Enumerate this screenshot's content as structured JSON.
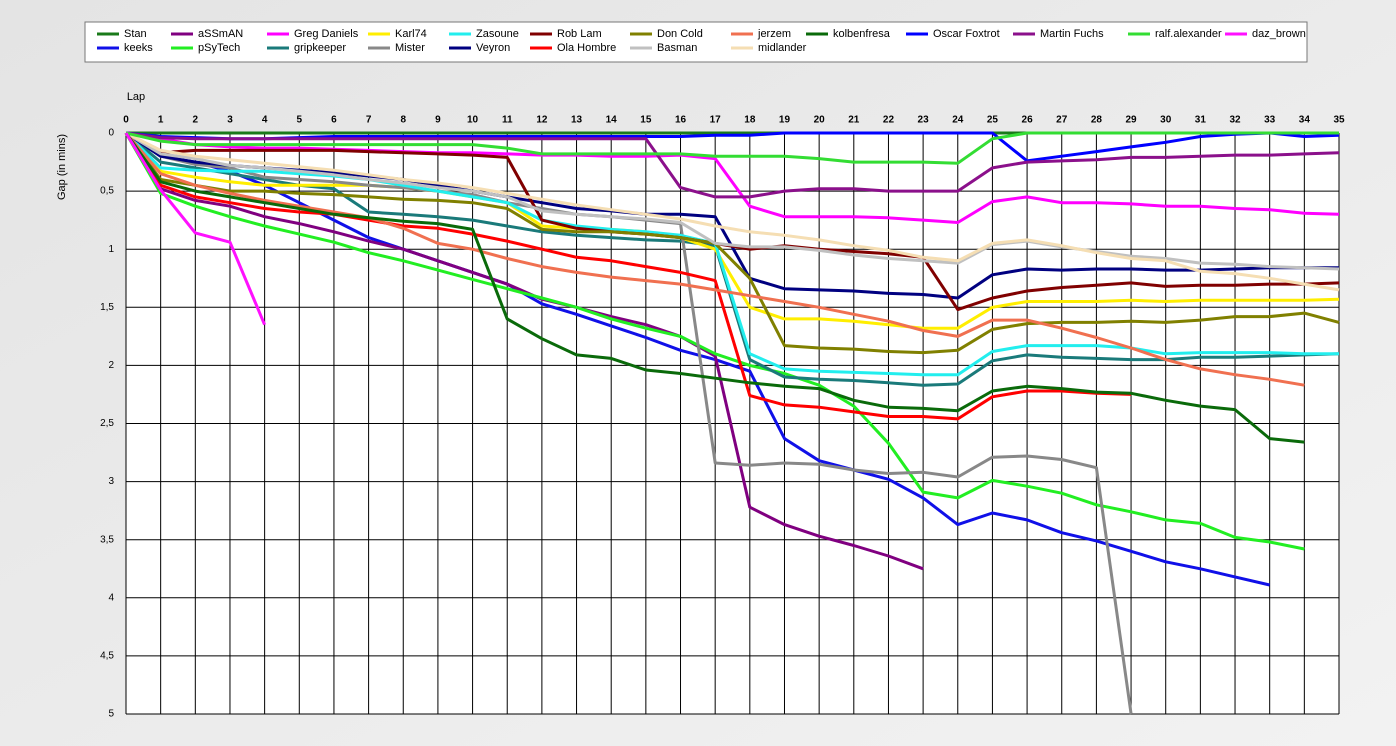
{
  "chart_data": {
    "type": "line",
    "x_label": "Lap",
    "y_label": "Gap (in mins)",
    "x": [
      0,
      1,
      2,
      3,
      4,
      5,
      6,
      7,
      8,
      9,
      10,
      11,
      12,
      13,
      14,
      15,
      16,
      17,
      18,
      19,
      20,
      21,
      22,
      23,
      24,
      25,
      26,
      27,
      28,
      29,
      30,
      31,
      32,
      33,
      34,
      35
    ],
    "xlim": [
      0,
      35
    ],
    "xticks": [
      0,
      1,
      2,
      3,
      4,
      5,
      6,
      7,
      8,
      9,
      10,
      11,
      12,
      13,
      14,
      15,
      16,
      17,
      18,
      19,
      20,
      21,
      22,
      23,
      24,
      25,
      26,
      27,
      28,
      29,
      30,
      31,
      32,
      33,
      34,
      35
    ],
    "ylim": [
      0,
      5
    ],
    "y_inverted": true,
    "yticks": [
      0,
      {
        "value": 0.5,
        "label": "0,5"
      },
      1,
      {
        "value": 1.5,
        "label": "1,5"
      },
      2,
      {
        "value": 2.5,
        "label": "2,5"
      },
      3,
      {
        "value": 3.5,
        "label": "3,5"
      },
      4,
      {
        "value": 4.5,
        "label": "4,5"
      },
      5
    ],
    "grid": true,
    "legend": "top",
    "series": [
      {
        "name": "Stan",
        "color": "#1a7a1a",
        "values": [
          0,
          0,
          0,
          0,
          0,
          0,
          0,
          0,
          0,
          0,
          0,
          0,
          0,
          0,
          0,
          0,
          0,
          0,
          0,
          0,
          0,
          0,
          0,
          0,
          0,
          0,
          0,
          0,
          0,
          0,
          0,
          0,
          0,
          0,
          0,
          0
        ]
      },
      {
        "name": "keeks",
        "color": "#1010e8",
        "values": [
          0,
          0.2,
          0.25,
          0.33,
          0.45,
          0.6,
          0.75,
          0.9,
          1.0,
          1.1,
          1.2,
          1.3,
          1.47,
          1.56,
          1.66,
          1.76,
          1.87,
          1.95,
          2.05,
          2.63,
          2.82,
          2.9,
          2.98,
          3.14,
          3.37,
          3.27,
          3.33,
          3.44,
          3.51,
          3.6,
          3.69,
          3.75,
          3.82,
          3.89,
          null,
          null
        ]
      },
      {
        "name": "aSSmAN",
        "color": "#800080",
        "values": [
          0,
          0.48,
          0.58,
          0.63,
          0.72,
          0.78,
          0.85,
          0.93,
          1.0,
          1.1,
          1.2,
          1.3,
          1.43,
          1.5,
          1.58,
          1.65,
          1.75,
          1.92,
          3.22,
          3.37,
          3.47,
          3.55,
          3.64,
          3.75,
          null,
          null,
          null,
          null,
          null,
          null,
          null,
          null,
          null,
          null,
          null,
          null
        ]
      },
      {
        "name": "pSyTech",
        "color": "#22ee22",
        "values": [
          0,
          0.52,
          0.63,
          0.72,
          0.8,
          0.87,
          0.94,
          1.03,
          1.1,
          1.18,
          1.26,
          1.34,
          1.42,
          1.5,
          1.6,
          1.68,
          1.75,
          1.9,
          2.0,
          2.07,
          2.17,
          2.35,
          2.67,
          3.09,
          3.14,
          2.99,
          3.04,
          3.1,
          3.2,
          3.26,
          3.33,
          3.36,
          3.48,
          3.52,
          3.58,
          null
        ]
      },
      {
        "name": "Greg Daniels",
        "color": "#ff00ff",
        "values": [
          0,
          0.05,
          0.1,
          0.12,
          0.13,
          0.13,
          0.14,
          0.15,
          0.16,
          0.17,
          0.17,
          0.18,
          0.19,
          0.19,
          0.2,
          0.2,
          0.19,
          0.22,
          0.63,
          0.72,
          0.72,
          0.72,
          0.73,
          0.75,
          0.77,
          0.59,
          0.55,
          0.6,
          0.6,
          0.61,
          0.63,
          0.63,
          0.65,
          0.66,
          0.69,
          0.7
        ]
      },
      {
        "name": "gripkeeper",
        "color": "#1a7a7a",
        "values": [
          0,
          0.25,
          0.3,
          0.35,
          0.4,
          0.45,
          0.48,
          0.68,
          0.7,
          0.72,
          0.75,
          0.8,
          0.85,
          0.88,
          0.9,
          0.92,
          0.93,
          0.97,
          1.95,
          2.1,
          2.12,
          2.13,
          2.15,
          2.17,
          2.16,
          1.96,
          1.91,
          1.93,
          1.94,
          1.95,
          1.95,
          1.93,
          1.93,
          1.92,
          1.91,
          1.9
        ]
      },
      {
        "name": "Karl74",
        "color": "#ffee00",
        "values": [
          0,
          0.33,
          0.38,
          0.42,
          0.45,
          0.45,
          0.45,
          0.45,
          0.47,
          0.5,
          0.55,
          0.6,
          0.8,
          0.82,
          0.83,
          0.85,
          0.9,
          1.0,
          1.5,
          1.6,
          1.6,
          1.62,
          1.65,
          1.68,
          1.68,
          1.5,
          1.45,
          1.45,
          1.45,
          1.44,
          1.45,
          1.44,
          1.44,
          1.44,
          1.44,
          1.43
        ]
      },
      {
        "name": "Mister",
        "color": "#888888",
        "values": [
          0,
          0.2,
          0.27,
          0.3,
          0.38,
          0.4,
          0.42,
          0.45,
          0.47,
          0.5,
          0.53,
          0.6,
          0.65,
          0.7,
          0.72,
          0.75,
          0.78,
          2.84,
          2.86,
          2.84,
          2.85,
          2.9,
          2.93,
          2.92,
          2.96,
          2.79,
          2.78,
          2.81,
          2.88,
          5.0,
          null,
          null,
          null,
          null,
          null,
          null
        ]
      },
      {
        "name": "Zasoune",
        "color": "#22eeee",
        "values": [
          0,
          0.3,
          0.32,
          0.33,
          0.33,
          0.35,
          0.37,
          0.4,
          0.45,
          0.5,
          0.55,
          0.6,
          0.75,
          0.8,
          0.83,
          0.85,
          0.88,
          0.95,
          1.9,
          2.03,
          2.05,
          2.06,
          2.07,
          2.08,
          2.08,
          1.88,
          1.83,
          1.83,
          1.83,
          1.85,
          1.9,
          1.89,
          1.89,
          1.89,
          1.9,
          1.9
        ]
      },
      {
        "name": "Veyron",
        "color": "#000080",
        "values": [
          0,
          0.2,
          0.25,
          0.28,
          0.3,
          0.32,
          0.34,
          0.37,
          0.4,
          0.45,
          0.5,
          0.55,
          0.6,
          0.65,
          0.67,
          0.7,
          0.7,
          0.72,
          1.25,
          1.34,
          1.35,
          1.36,
          1.38,
          1.39,
          1.42,
          1.22,
          1.17,
          1.18,
          1.17,
          1.17,
          1.18,
          1.18,
          1.17,
          1.16,
          1.16,
          1.16
        ]
      },
      {
        "name": "Rob Lam",
        "color": "#800000",
        "values": [
          0,
          0.17,
          0.15,
          0.15,
          0.15,
          0.15,
          0.15,
          0.16,
          0.17,
          0.18,
          0.19,
          0.21,
          0.75,
          0.82,
          0.85,
          0.87,
          0.9,
          0.95,
          1.0,
          0.97,
          1.0,
          1.02,
          1.04,
          1.07,
          1.52,
          1.42,
          1.36,
          1.33,
          1.31,
          1.29,
          1.32,
          1.31,
          1.31,
          1.3,
          1.3,
          1.29
        ]
      },
      {
        "name": "Ola Hombre",
        "color": "#ff0000",
        "values": [
          0,
          0.45,
          0.55,
          0.6,
          0.65,
          0.68,
          0.7,
          0.75,
          0.8,
          0.82,
          0.87,
          0.93,
          1.0,
          1.07,
          1.1,
          1.15,
          1.2,
          1.27,
          2.26,
          2.34,
          2.36,
          2.4,
          2.44,
          2.44,
          2.46,
          2.27,
          2.22,
          2.22,
          2.24,
          2.25,
          null,
          null,
          null,
          null,
          null,
          null
        ]
      },
      {
        "name": "Don Cold",
        "color": "#808000",
        "values": [
          0,
          0.4,
          0.45,
          0.5,
          0.5,
          0.52,
          0.53,
          0.55,
          0.57,
          0.58,
          0.6,
          0.65,
          0.83,
          0.85,
          0.85,
          0.87,
          0.9,
          0.95,
          1.25,
          1.83,
          1.85,
          1.86,
          1.88,
          1.89,
          1.87,
          1.69,
          1.64,
          1.63,
          1.63,
          1.62,
          1.63,
          1.61,
          1.58,
          1.58,
          1.55,
          1.63
        ]
      },
      {
        "name": "Basman",
        "color": "#c0c0c0",
        "values": [
          0,
          0.18,
          0.22,
          0.28,
          0.3,
          0.33,
          0.36,
          0.4,
          0.43,
          0.47,
          0.5,
          0.55,
          0.67,
          0.7,
          0.72,
          0.74,
          0.77,
          0.95,
          0.98,
          0.98,
          1.01,
          1.05,
          1.08,
          1.1,
          1.12,
          0.96,
          0.93,
          0.98,
          1.02,
          1.06,
          1.08,
          1.12,
          1.13,
          1.15,
          1.16,
          1.17
        ]
      },
      {
        "name": "jerzem",
        "color": "#f07050",
        "values": [
          0,
          0.35,
          0.45,
          0.52,
          0.58,
          0.63,
          0.68,
          0.73,
          0.82,
          0.95,
          1.0,
          1.08,
          1.15,
          1.2,
          1.24,
          1.27,
          1.3,
          1.35,
          1.4,
          1.45,
          1.5,
          1.56,
          1.62,
          1.7,
          1.75,
          1.61,
          1.61,
          1.68,
          1.76,
          1.85,
          1.95,
          2.03,
          2.08,
          2.12,
          2.17,
          null
        ]
      },
      {
        "name": "midlander",
        "color": "#f5deb3",
        "values": [
          0,
          0.15,
          0.2,
          0.23,
          0.26,
          0.29,
          0.32,
          0.36,
          0.4,
          0.43,
          0.47,
          0.52,
          0.57,
          0.62,
          0.66,
          0.7,
          0.74,
          0.8,
          0.85,
          0.88,
          0.92,
          0.97,
          1.01,
          1.07,
          1.1,
          0.95,
          0.92,
          0.97,
          1.03,
          1.08,
          1.1,
          1.19,
          1.21,
          1.25,
          1.3,
          1.35
        ]
      },
      {
        "name": "kolbenfresa",
        "color": "#0a6a0a",
        "values": [
          0,
          0.42,
          0.5,
          0.55,
          0.6,
          0.65,
          0.7,
          0.73,
          0.76,
          0.78,
          0.83,
          1.6,
          1.77,
          1.91,
          1.94,
          2.04,
          2.07,
          2.11,
          2.15,
          2.18,
          2.2,
          2.3,
          2.36,
          2.37,
          2.39,
          2.22,
          2.18,
          2.2,
          2.23,
          2.24,
          2.3,
          2.35,
          2.38,
          2.63,
          2.66,
          null
        ]
      },
      {
        "name": "Oscar Foxtrot",
        "color": "#0000ff",
        "values": [
          0,
          0.03,
          0.04,
          0.05,
          0.05,
          0.04,
          0.03,
          0.03,
          0.03,
          0.03,
          0.03,
          0.03,
          0.03,
          0.03,
          0.03,
          0.03,
          0.03,
          0.02,
          0.02,
          0,
          0,
          0,
          0,
          0,
          0,
          0,
          0.24,
          0.2,
          0.16,
          0.12,
          0.08,
          0.03,
          0.01,
          0,
          0.03,
          0.02
        ]
      },
      {
        "name": "Martin Fuchs",
        "color": "#8b108b",
        "values": [
          0,
          0.04,
          0.05,
          0.05,
          0.05,
          0.05,
          0.05,
          0.05,
          0.05,
          0.05,
          0.05,
          0.05,
          0.05,
          0.05,
          0.05,
          0.05,
          0.47,
          0.55,
          0.55,
          0.5,
          0.48,
          0.48,
          0.5,
          0.5,
          0.5,
          0.3,
          0.25,
          0.24,
          0.23,
          0.21,
          0.21,
          0.2,
          0.19,
          0.19,
          0.18,
          0.17
        ]
      },
      {
        "name": "ralf.alexander",
        "color": "#33dd33",
        "values": [
          0,
          0.07,
          0.1,
          0.1,
          0.1,
          0.1,
          0.1,
          0.1,
          0.1,
          0.1,
          0.1,
          0.13,
          0.18,
          0.18,
          0.18,
          0.18,
          0.18,
          0.2,
          0.2,
          0.2,
          0.22,
          0.25,
          0.25,
          0.25,
          0.26,
          0.05,
          0,
          0,
          0,
          0,
          0,
          0,
          0,
          0,
          0,
          0
        ]
      },
      {
        "name": "daz_brown",
        "color": "#ff10ff",
        "values": [
          0,
          0.49,
          0.86,
          0.94,
          1.65,
          null,
          null,
          null,
          null,
          null,
          null,
          null,
          null,
          null,
          null,
          null,
          null,
          null,
          null,
          null,
          null,
          null,
          null,
          null,
          null,
          null,
          null,
          null,
          null,
          null,
          null,
          null,
          null,
          null,
          null,
          null
        ]
      }
    ]
  }
}
